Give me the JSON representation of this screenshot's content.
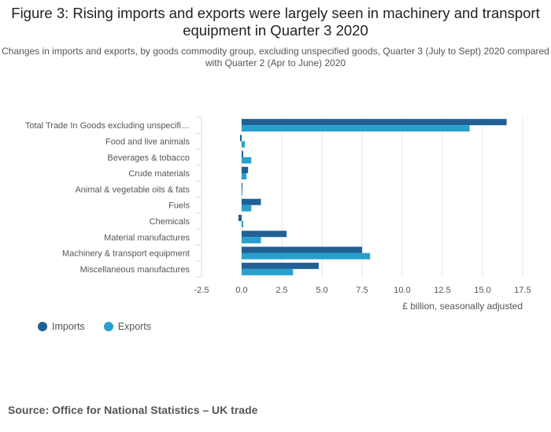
{
  "header": {
    "title": "Figure 3: Rising imports and exports were largely seen in machinery and transport equipment in Quarter 3 2020",
    "subtitle": "Changes in imports and exports, by goods commodity group, excluding unspecified goods, Quarter 3 (July to Sept) 2020 compared with Quarter 2 (Apr to June) 2020"
  },
  "chart_data": {
    "type": "bar",
    "orientation": "horizontal",
    "categories": [
      "Total Trade In Goods excluding unspecifi…",
      "Food and live animals",
      "Beverages & tobacco",
      "Crude materials",
      "Animal & vegetable oils & fats",
      "Fuels",
      "Chemicals",
      "Material manufactures",
      "Machinery & transport equipment",
      "Miscellaneous manufactures"
    ],
    "series": [
      {
        "name": "Imports",
        "color": "#206095",
        "values": [
          16.5,
          -0.1,
          0.1,
          0.4,
          0.0,
          1.2,
          -0.2,
          2.8,
          7.5,
          4.8
        ]
      },
      {
        "name": "Exports",
        "color": "#27a0cc",
        "values": [
          14.2,
          0.2,
          0.6,
          0.3,
          0.0,
          0.6,
          0.1,
          1.2,
          8.0,
          3.2
        ]
      }
    ],
    "xlim": [
      -2.5,
      17.5
    ],
    "xticks": [
      -2.5,
      0,
      2.5,
      5,
      7.5,
      10,
      12.5,
      15,
      17.5
    ],
    "xtick_labels": [
      "-2.5",
      "0.0",
      "2.5",
      "5.0",
      "7.5",
      "10.0",
      "12.5",
      "15.0",
      "17.5"
    ],
    "xlabel": "£ billion, seasonally adjusted",
    "ylabel": "",
    "grid": true,
    "legend_position": "bottom-left"
  },
  "legend": {
    "items": [
      {
        "label": "Imports",
        "color": "#206095"
      },
      {
        "label": "Exports",
        "color": "#27a0cc"
      }
    ]
  },
  "footer": {
    "source": "Source: Office for National Statistics – UK trade"
  }
}
